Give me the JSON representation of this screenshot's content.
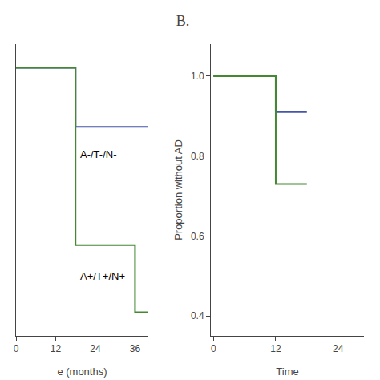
{
  "chart_data": [
    {
      "type": "step",
      "x_label": "e (months)",
      "series": [
        {
          "color": "#4455aa",
          "x": [
            0,
            18,
            18,
            40
          ],
          "values": [
            1.0,
            1.0,
            0.85,
            0.85
          ]
        },
        {
          "color": "#448833",
          "x": [
            0,
            18,
            18,
            36,
            36,
            40
          ],
          "values": [
            1.0,
            1.0,
            0.55,
            0.55,
            0.38,
            0.38
          ]
        }
      ],
      "annotations": [
        {
          "text": "A-/T-/N-",
          "x": 19,
          "y": 0.8
        },
        {
          "text": "A+/T+/N+",
          "x": 19,
          "y": 0.49
        }
      ],
      "xlim": [
        0,
        40
      ],
      "xticks": [
        0,
        12,
        24,
        36
      ],
      "ylim": [
        0.32,
        1.06
      ],
      "yticks": [],
      "tick_labels": "x",
      "grid": false
    },
    {
      "type": "step",
      "title": "B.",
      "x_label": "Time",
      "y_label": "Proportion without AD",
      "series": [
        {
          "color": "#4455aa",
          "x": [
            0,
            12,
            12,
            18
          ],
          "values": [
            1.0,
            1.0,
            0.91,
            0.91
          ]
        },
        {
          "color": "#448833",
          "x": [
            0,
            12,
            12,
            18
          ],
          "values": [
            1.0,
            1.0,
            0.73,
            0.73
          ]
        }
      ],
      "xlim": [
        -0.5,
        29
      ],
      "xticks": [
        0,
        12,
        24
      ],
      "ylim": [
        0.35,
        1.08
      ],
      "yticks": [
        0.4,
        0.6,
        0.8,
        {
          "value": 1.0,
          "label": "1.0"
        }
      ],
      "grid": false
    }
  ]
}
